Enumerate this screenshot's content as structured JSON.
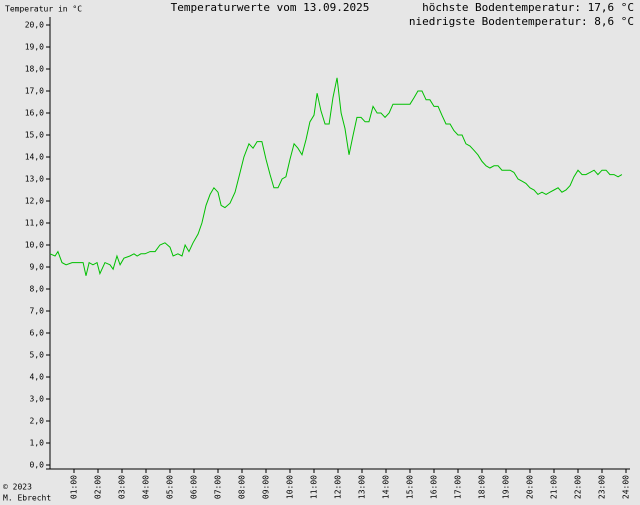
{
  "chart_data": {
    "type": "line",
    "title": "Temperaturwerte vom 13.09.2025",
    "y_label": "Temperatur in °C",
    "annotations": [
      "höchste Bodentemperatur: 17,6 °C",
      "niedrigste Bodentemperatur: 8,6 °C"
    ],
    "footer": [
      "© 2023",
      "M. Ebrecht"
    ],
    "x": [
      0,
      0.21,
      0.33,
      0.5,
      0.67,
      0.92,
      1.25,
      1.38,
      1.5,
      1.63,
      1.79,
      1.96,
      2.08,
      2.29,
      2.5,
      2.63,
      2.79,
      2.92,
      3.08,
      3.33,
      3.5,
      3.63,
      3.79,
      3.96,
      4.17,
      4.38,
      4.58,
      4.79,
      5.0,
      5.13,
      5.33,
      5.5,
      5.63,
      5.79,
      5.96,
      6.17,
      6.33,
      6.5,
      6.67,
      6.83,
      7.0,
      7.13,
      7.29,
      7.5,
      7.71,
      7.92,
      8.08,
      8.29,
      8.46,
      8.63,
      8.83,
      9.0,
      9.17,
      9.33,
      9.5,
      9.67,
      9.83,
      10.0,
      10.17,
      10.33,
      10.5,
      10.67,
      10.83,
      11.0,
      11.13,
      11.29,
      11.46,
      11.63,
      11.79,
      11.96,
      12.13,
      12.29,
      12.46,
      12.63,
      12.79,
      12.96,
      13.13,
      13.29,
      13.46,
      13.63,
      13.79,
      13.96,
      14.13,
      14.29,
      14.5,
      14.67,
      14.83,
      15.0,
      15.17,
      15.33,
      15.5,
      15.67,
      15.83,
      16.0,
      16.17,
      16.33,
      16.5,
      16.67,
      16.83,
      17.0,
      17.17,
      17.33,
      17.5,
      17.67,
      17.83,
      18.0,
      18.17,
      18.33,
      18.5,
      18.67,
      18.83,
      19.0,
      19.17,
      19.33,
      19.5,
      19.67,
      19.83,
      20.0,
      20.17,
      20.33,
      20.5,
      20.67,
      20.83,
      21.0,
      21.17,
      21.33,
      21.5,
      21.67,
      21.83,
      22.0,
      22.17,
      22.33,
      22.5,
      22.67,
      22.83,
      23.0,
      23.17,
      23.33,
      23.5,
      23.67,
      23.83
    ],
    "series": [
      {
        "color": "#00c000",
        "values": [
          9.6,
          9.5,
          9.7,
          9.2,
          9.1,
          9.2,
          9.2,
          9.2,
          8.6,
          9.2,
          9.1,
          9.2,
          8.7,
          9.2,
          9.1,
          8.9,
          9.5,
          9.1,
          9.4,
          9.5,
          9.6,
          9.5,
          9.6,
          9.6,
          9.7,
          9.7,
          10.0,
          10.1,
          9.9,
          9.5,
          9.6,
          9.5,
          10.0,
          9.7,
          10.1,
          10.5,
          11.0,
          11.8,
          12.3,
          12.6,
          12.4,
          11.8,
          11.7,
          11.9,
          12.4,
          13.3,
          14.0,
          14.6,
          14.4,
          14.7,
          14.7,
          13.9,
          13.2,
          12.6,
          12.6,
          13.0,
          13.1,
          13.9,
          14.6,
          14.4,
          14.1,
          14.8,
          15.6,
          15.9,
          16.9,
          16.1,
          15.5,
          15.5,
          16.7,
          17.6,
          16.0,
          15.3,
          14.1,
          15.0,
          15.8,
          15.8,
          15.6,
          15.6,
          16.3,
          16.0,
          16.0,
          15.8,
          16.0,
          16.4,
          16.4,
          16.4,
          16.4,
          16.4,
          16.7,
          17.0,
          17.0,
          16.6,
          16.6,
          16.3,
          16.3,
          15.9,
          15.5,
          15.5,
          15.2,
          15.0,
          15.0,
          14.6,
          14.5,
          14.3,
          14.1,
          13.8,
          13.6,
          13.5,
          13.6,
          13.6,
          13.4,
          13.4,
          13.4,
          13.3,
          13.0,
          12.9,
          12.8,
          12.6,
          12.5,
          12.3,
          12.4,
          12.3,
          12.4,
          12.5,
          12.6,
          12.4,
          12.5,
          12.7,
          13.1,
          13.4,
          13.2,
          13.2,
          13.3,
          13.4,
          13.2,
          13.4,
          13.4,
          13.2,
          13.2,
          13.1,
          13.2
        ]
      }
    ],
    "xlim": [
      0,
      24
    ],
    "ylim": [
      0,
      20
    ],
    "xticks": [
      {
        "value": 1,
        "label": "01:00"
      },
      {
        "value": 2,
        "label": "02:00"
      },
      {
        "value": 3,
        "label": "03:00"
      },
      {
        "value": 4,
        "label": "04:00"
      },
      {
        "value": 5,
        "label": "05:00"
      },
      {
        "value": 6,
        "label": "06:00"
      },
      {
        "value": 7,
        "label": "07:00"
      },
      {
        "value": 8,
        "label": "08:00"
      },
      {
        "value": 9,
        "label": "09:00"
      },
      {
        "value": 10,
        "label": "10:00"
      },
      {
        "value": 11,
        "label": "11:00"
      },
      {
        "value": 12,
        "label": "12:00"
      },
      {
        "value": 13,
        "label": "13:00"
      },
      {
        "value": 14,
        "label": "14:00"
      },
      {
        "value": 15,
        "label": "15:00"
      },
      {
        "value": 16,
        "label": "16:00"
      },
      {
        "value": 17,
        "label": "17:00"
      },
      {
        "value": 18,
        "label": "18:00"
      },
      {
        "value": 19,
        "label": "19:00"
      },
      {
        "value": 20,
        "label": "20:00"
      },
      {
        "value": 21,
        "label": "21:00"
      },
      {
        "value": 22,
        "label": "22:00"
      },
      {
        "value": 23,
        "label": "23:00"
      },
      {
        "value": 24,
        "label": "24:00"
      }
    ],
    "yticks": [
      {
        "value": 0,
        "label": "0,0"
      },
      {
        "value": 1,
        "label": "1,0"
      },
      {
        "value": 2,
        "label": "2,0"
      },
      {
        "value": 3,
        "label": "3,0"
      },
      {
        "value": 4,
        "label": "4,0"
      },
      {
        "value": 5,
        "label": "5,0"
      },
      {
        "value": 6,
        "label": "6,0"
      },
      {
        "value": 7,
        "label": "7,0"
      },
      {
        "value": 8,
        "label": "8,0"
      },
      {
        "value": 9,
        "label": "9,0"
      },
      {
        "value": 10,
        "label": "10,0"
      },
      {
        "value": 11,
        "label": "11,0"
      },
      {
        "value": 12,
        "label": "12,0"
      },
      {
        "value": 13,
        "label": "13,0"
      },
      {
        "value": 14,
        "label": "14,0"
      },
      {
        "value": 15,
        "label": "15,0"
      },
      {
        "value": 16,
        "label": "16,0"
      },
      {
        "value": 17,
        "label": "17,0"
      },
      {
        "value": 18,
        "label": "18,0"
      },
      {
        "value": 19,
        "label": "19,0"
      },
      {
        "value": 20,
        "label": "20,0"
      }
    ]
  }
}
